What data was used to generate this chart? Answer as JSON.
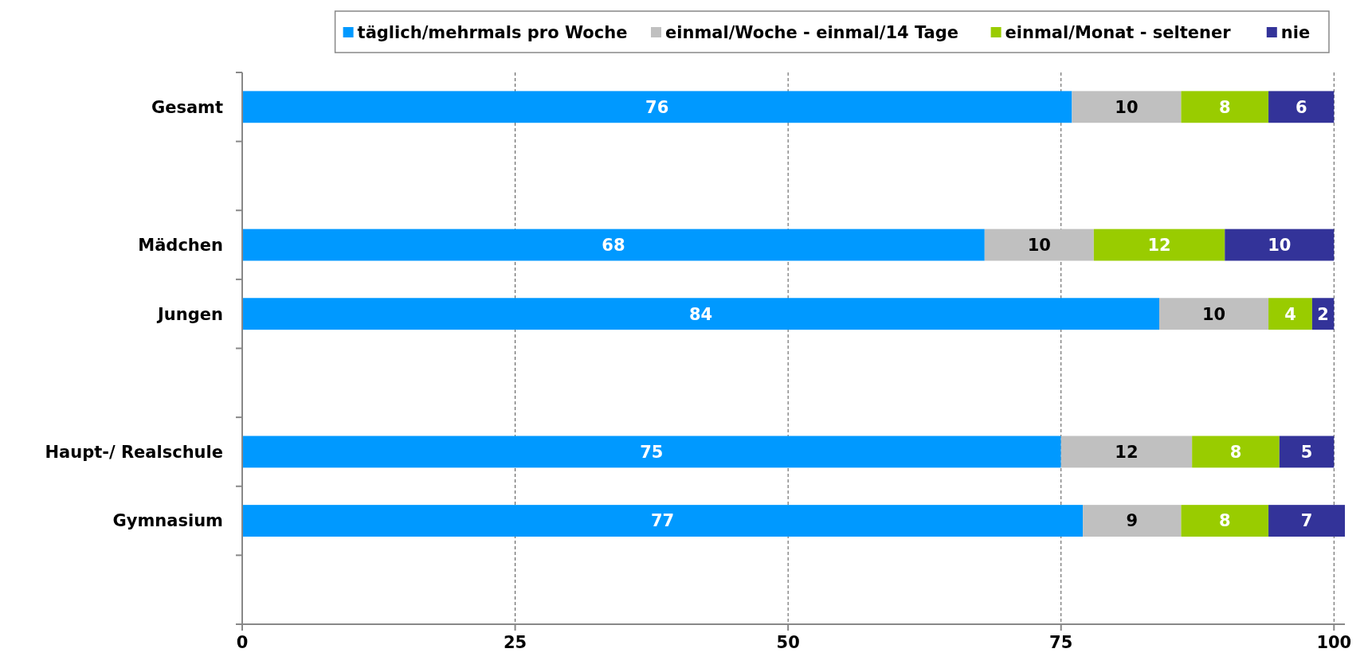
{
  "chart_data": {
    "type": "bar",
    "orientation": "horizontal",
    "stacked": true,
    "categories": [
      "Gesamt",
      null,
      "Mädchen",
      "Jungen",
      null,
      "Haupt-/ Realschule",
      "Gymnasium",
      null
    ],
    "series": [
      {
        "name": "täglich/mehrmals pro Woche",
        "color": "#0099ff",
        "values": [
          76,
          null,
          68,
          84,
          null,
          75,
          77,
          null
        ]
      },
      {
        "name": "einmal/Woche - einmal/14 Tage",
        "color": "#c0c0c0",
        "values": [
          10,
          null,
          10,
          10,
          null,
          12,
          9,
          null
        ]
      },
      {
        "name": "einmal/Monat - seltener",
        "color": "#99cc00",
        "values": [
          8,
          null,
          12,
          4,
          null,
          8,
          8,
          null
        ]
      },
      {
        "name": "nie",
        "color": "#333399",
        "values": [
          6,
          null,
          10,
          2,
          null,
          5,
          7,
          null
        ]
      }
    ],
    "xlim": [
      0,
      101
    ],
    "xticks": [
      0,
      25,
      50,
      75,
      100
    ],
    "grid": "x",
    "legend": "top",
    "data_labels": true
  }
}
